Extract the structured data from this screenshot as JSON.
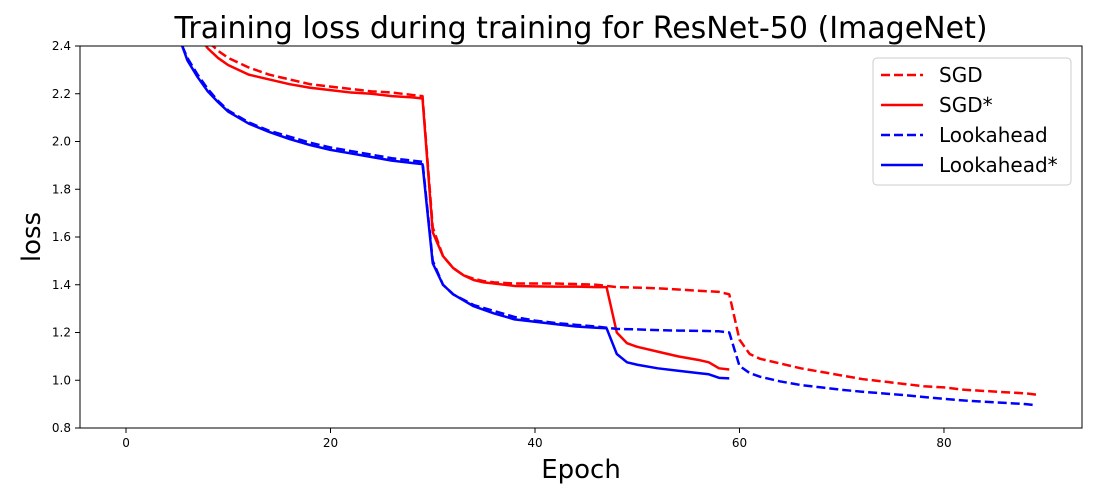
{
  "chart_data": {
    "type": "line",
    "title": "Training loss during training for ResNet-50 (ImageNet)",
    "xlabel": "Epoch",
    "ylabel": "loss",
    "xlim": [
      -4.5,
      93.5
    ],
    "ylim": [
      0.8,
      2.4
    ],
    "xticks": [
      0,
      20,
      40,
      60,
      80
    ],
    "yticks": [
      0.8,
      1.0,
      1.2,
      1.4,
      1.6,
      1.8,
      2.0,
      2.2,
      2.4
    ],
    "grid": false,
    "legend_position": "top-right",
    "series": [
      {
        "name": "SGD",
        "color": "#ff0000",
        "style": "dashed",
        "x": [
          6,
          7,
          8,
          9,
          10,
          12,
          14,
          16,
          18,
          20,
          22,
          24,
          26,
          28,
          29,
          30,
          31,
          32,
          33,
          34,
          35,
          36,
          38,
          40,
          42,
          44,
          46,
          47,
          48,
          50,
          52,
          54,
          56,
          58,
          59,
          60,
          61,
          62,
          64,
          66,
          68,
          70,
          72,
          74,
          76,
          78,
          80,
          82,
          84,
          86,
          88,
          89
        ],
        "y": [
          2.55,
          2.48,
          2.42,
          2.38,
          2.35,
          2.31,
          2.28,
          2.26,
          2.24,
          2.23,
          2.22,
          2.21,
          2.205,
          2.195,
          2.19,
          1.64,
          1.52,
          1.47,
          1.44,
          1.425,
          1.415,
          1.41,
          1.405,
          1.405,
          1.405,
          1.403,
          1.4,
          1.395,
          1.39,
          1.388,
          1.385,
          1.38,
          1.375,
          1.37,
          1.36,
          1.17,
          1.11,
          1.09,
          1.07,
          1.05,
          1.035,
          1.02,
          1.005,
          0.995,
          0.985,
          0.975,
          0.97,
          0.96,
          0.955,
          0.95,
          0.945,
          0.94
        ]
      },
      {
        "name": "SGD*",
        "color": "#ff0000",
        "style": "solid",
        "x": [
          6,
          7,
          8,
          9,
          10,
          12,
          14,
          16,
          18,
          20,
          22,
          24,
          26,
          28,
          29,
          30,
          31,
          32,
          33,
          34,
          35,
          36,
          38,
          40,
          42,
          44,
          46,
          47,
          48,
          49,
          50,
          52,
          54,
          56,
          57,
          58,
          59
        ],
        "y": [
          2.52,
          2.45,
          2.39,
          2.35,
          2.32,
          2.28,
          2.26,
          2.24,
          2.225,
          2.215,
          2.205,
          2.2,
          2.19,
          2.185,
          2.18,
          1.62,
          1.52,
          1.47,
          1.44,
          1.42,
          1.41,
          1.405,
          1.395,
          1.393,
          1.392,
          1.392,
          1.39,
          1.39,
          1.2,
          1.155,
          1.14,
          1.12,
          1.1,
          1.085,
          1.075,
          1.05,
          1.045
        ]
      },
      {
        "name": "Lookahead",
        "color": "#0000ff",
        "style": "dashed",
        "x": [
          5.5,
          6,
          7,
          8,
          9,
          10,
          12,
          14,
          16,
          18,
          20,
          22,
          24,
          26,
          28,
          29,
          30,
          31,
          32,
          34,
          36,
          38,
          40,
          42,
          44,
          46,
          47,
          48,
          50,
          52,
          54,
          56,
          58,
          59,
          60,
          61,
          62,
          64,
          66,
          68,
          70,
          72,
          74,
          76,
          78,
          80,
          82,
          84,
          86,
          88,
          89
        ],
        "y": [
          2.4,
          2.35,
          2.28,
          2.22,
          2.17,
          2.13,
          2.08,
          2.045,
          2.02,
          1.995,
          1.975,
          1.96,
          1.945,
          1.93,
          1.92,
          1.915,
          1.5,
          1.4,
          1.36,
          1.315,
          1.29,
          1.265,
          1.25,
          1.24,
          1.232,
          1.225,
          1.22,
          1.215,
          1.213,
          1.21,
          1.208,
          1.207,
          1.205,
          1.2,
          1.06,
          1.03,
          1.015,
          0.995,
          0.98,
          0.97,
          0.96,
          0.952,
          0.945,
          0.938,
          0.93,
          0.922,
          0.915,
          0.91,
          0.905,
          0.9,
          0.895
        ]
      },
      {
        "name": "Lookahead*",
        "color": "#0000ff",
        "style": "solid",
        "x": [
          5.5,
          6,
          7,
          8,
          9,
          10,
          12,
          14,
          16,
          18,
          20,
          22,
          24,
          26,
          28,
          29,
          30,
          31,
          32,
          34,
          36,
          38,
          40,
          42,
          44,
          46,
          47,
          48,
          49,
          50,
          52,
          54,
          56,
          57,
          58,
          59
        ],
        "y": [
          2.4,
          2.34,
          2.27,
          2.21,
          2.165,
          2.125,
          2.075,
          2.04,
          2.01,
          1.985,
          1.965,
          1.95,
          1.935,
          1.92,
          1.91,
          1.905,
          1.49,
          1.4,
          1.36,
          1.31,
          1.28,
          1.255,
          1.245,
          1.235,
          1.225,
          1.22,
          1.218,
          1.11,
          1.075,
          1.065,
          1.05,
          1.04,
          1.03,
          1.025,
          1.01,
          1.008
        ]
      }
    ]
  }
}
